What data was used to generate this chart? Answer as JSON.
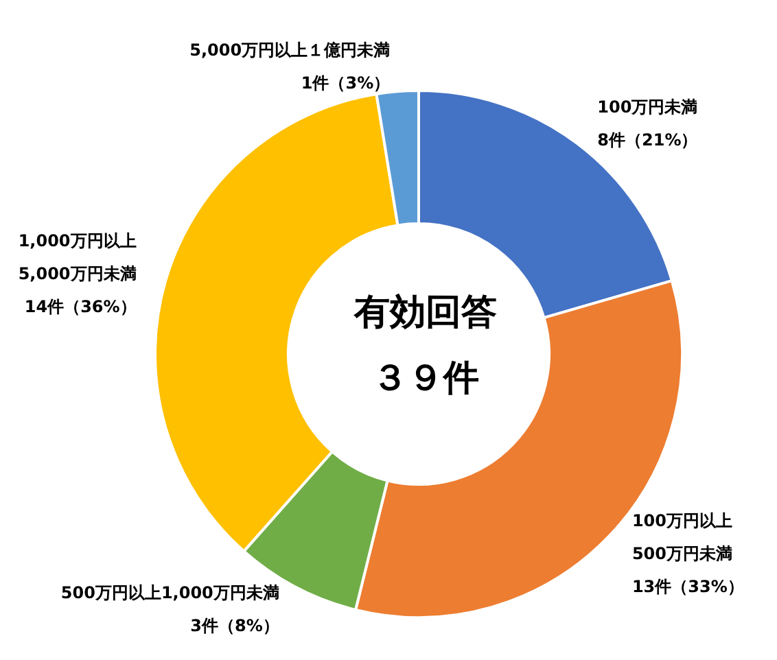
{
  "chart_data": {
    "type": "donut",
    "title": "有効回答",
    "subtitle": "３９件",
    "categories": [
      "100万円未満",
      "100万円以上\n500万円未満",
      "500万円以上1,000万円未満",
      "1,000万円以上\n5,000万円未満",
      "5,000万円以上１億円未満"
    ],
    "values": [
      8,
      13,
      3,
      14,
      1
    ],
    "value_labels": [
      "8件（21%）",
      "13件（33%）",
      "3件（8%）",
      "14件（36%）",
      "1件（3%）"
    ],
    "colors": [
      "#4472c4",
      "#ed7d31",
      "#70ad47",
      "#ffc000",
      "#5b9bd5"
    ],
    "legend": false
  }
}
